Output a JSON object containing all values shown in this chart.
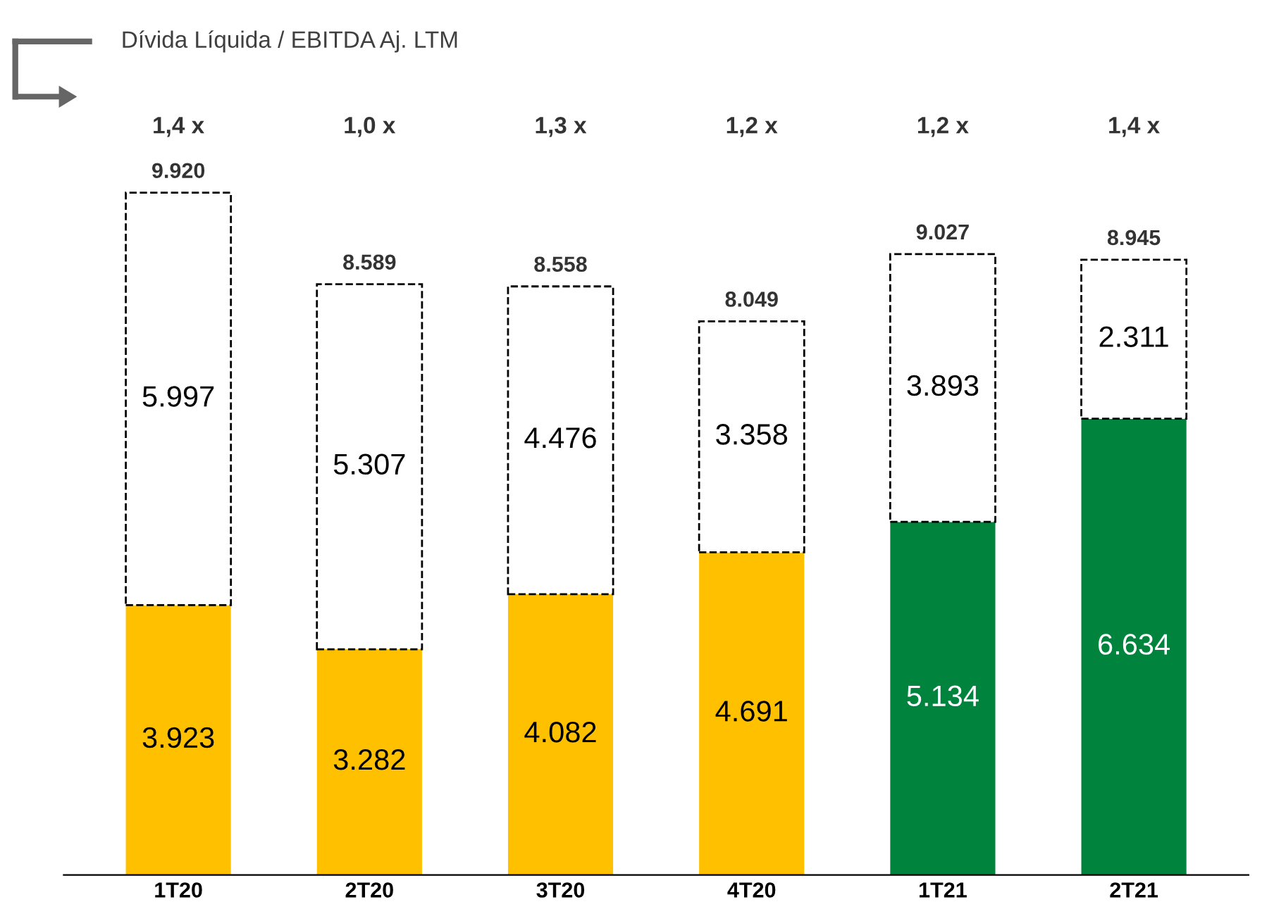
{
  "chart_data": {
    "type": "bar",
    "stacked": true,
    "title": "Dívida Líquida / EBITDA Aj. LTM",
    "categories": [
      "1T20",
      "2T20",
      "3T20",
      "4T20",
      "1T21",
      "2T21"
    ],
    "series": [
      {
        "colors": [
          "#ffc000",
          "#ffc000",
          "#ffc000",
          "#ffc000",
          "#00843d",
          "#00843d"
        ],
        "values": [
          3923,
          3282,
          4082,
          4691,
          5134,
          6634
        ],
        "value_labels": [
          "3.923",
          "3.282",
          "4.082",
          "4.691",
          "5.134",
          "6.634"
        ]
      },
      {
        "color": "#ffffff",
        "line_style": "dashed",
        "values": [
          5997,
          5307,
          4476,
          3358,
          3893,
          2311
        ],
        "value_labels": [
          "5.997",
          "5.307",
          "4.476",
          "3.358",
          "3.893",
          "2.311"
        ]
      }
    ],
    "totals": [
      "9.920",
      "8.589",
      "8.558",
      "8.049",
      "9.027",
      "8.945"
    ],
    "annotations": [
      "1,4 x",
      "1,0 x",
      "1,3 x",
      "1,2 x",
      "1,2 x",
      "1,4 x"
    ],
    "grid": false,
    "legend": false
  }
}
